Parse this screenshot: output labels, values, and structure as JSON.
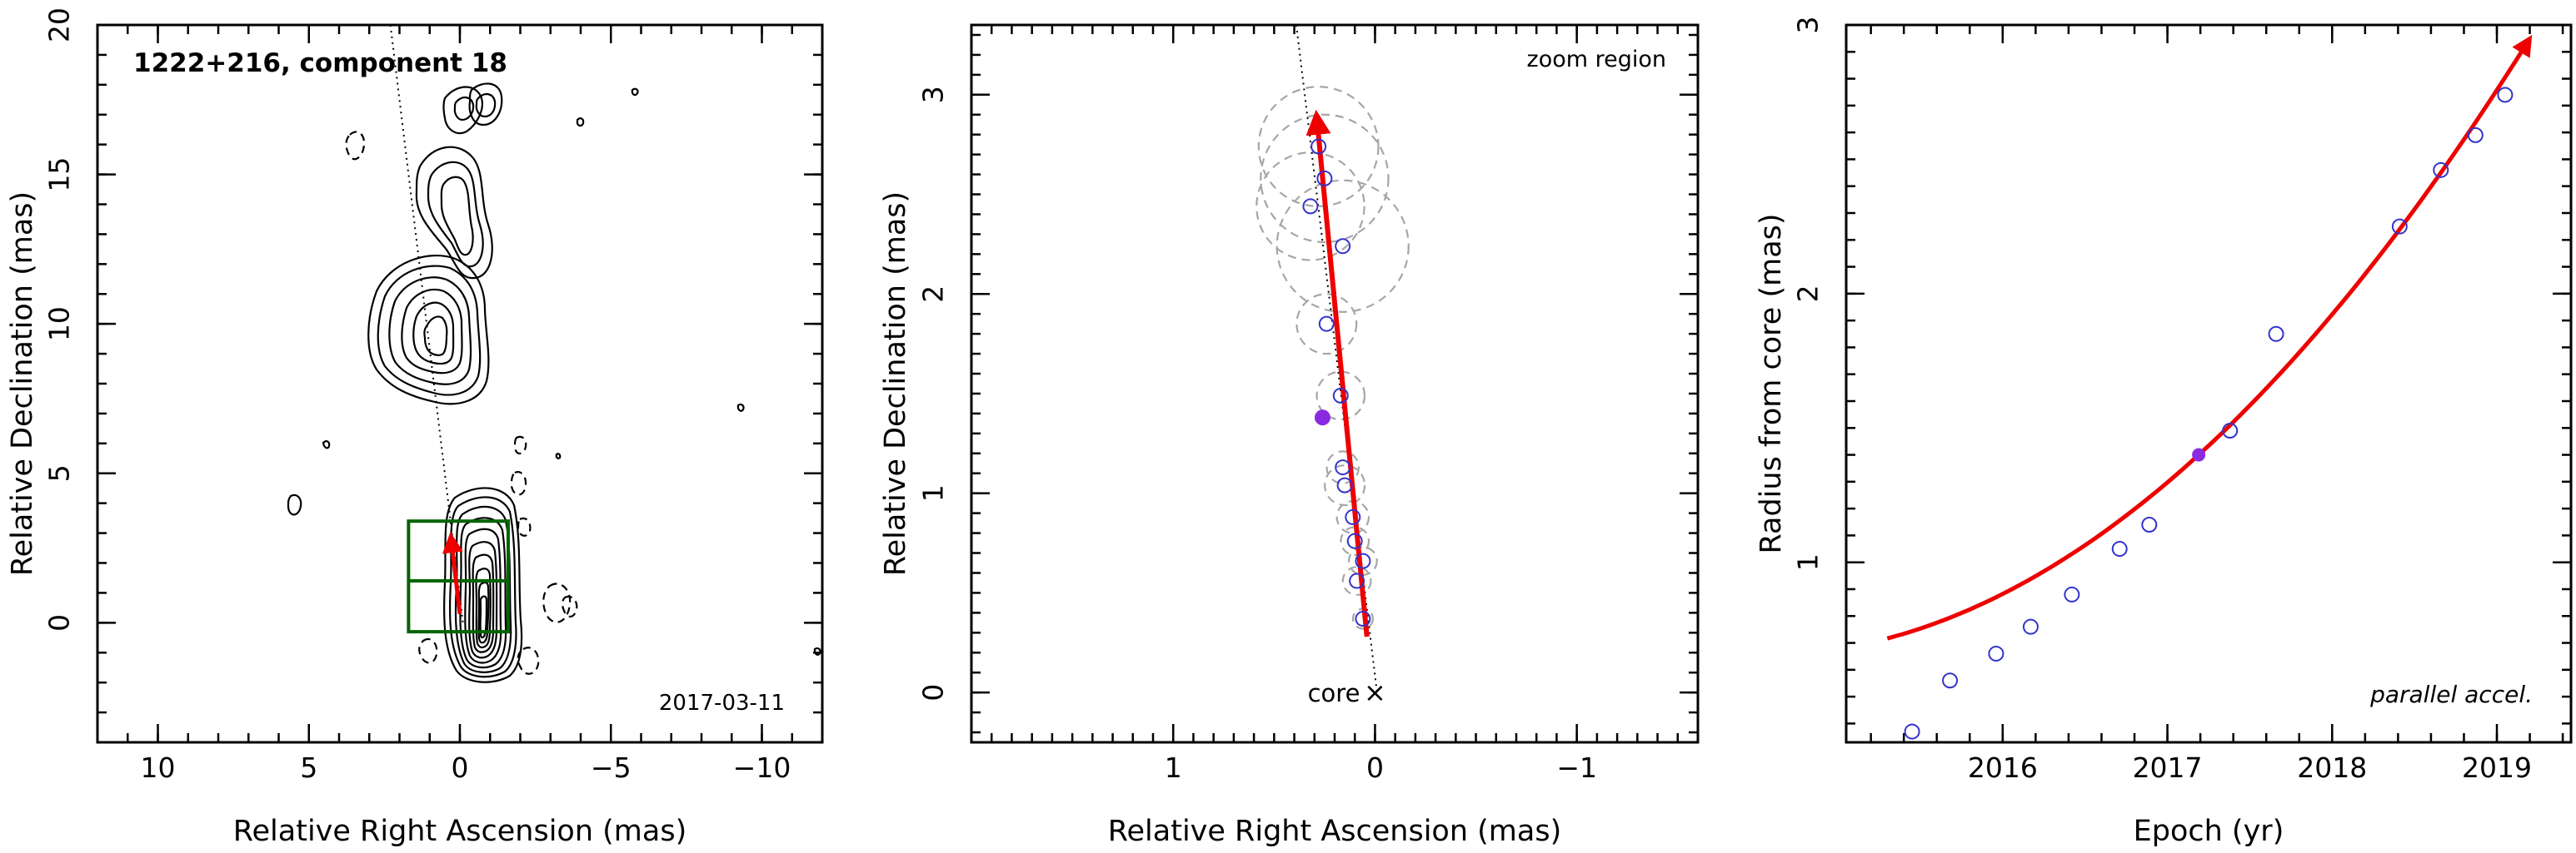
{
  "chart_data": [
    {
      "type": "contour",
      "title": "1222+216, component 18",
      "date_label": "2017-03-11",
      "xlabel": "Relative Right Ascension (mas)",
      "ylabel": "Relative Declination (mas)",
      "xlim": [
        12,
        -12
      ],
      "ylim": [
        -4,
        20
      ],
      "xticks": [
        10,
        5,
        0,
        -5,
        -10
      ],
      "yticks": [
        0,
        5,
        10,
        15,
        20
      ],
      "xtick_labels": [
        "10",
        "5",
        "0",
        "−5",
        "−10"
      ],
      "ytick_labels": [
        "0",
        "5",
        "10",
        "15",
        "20"
      ],
      "dotted_line": [
        [
          2.3,
          20
        ],
        [
          -0.1,
          0
        ]
      ],
      "zoom_box": {
        "x": [
          1.7,
          -1.6
        ],
        "y": [
          -0.3,
          3.4
        ],
        "center_y": 1.4
      },
      "arrow": {
        "from": [
          0.0,
          0.3
        ],
        "to": [
          0.3,
          2.9
        ]
      }
    },
    {
      "type": "scatter",
      "title": "zoom region",
      "xlabel": "Relative Right Ascension (mas)",
      "ylabel": "Relative Declination (mas)",
      "xlim": [
        2.0,
        -1.6
      ],
      "ylim": [
        -0.25,
        3.35
      ],
      "xticks": [
        1,
        0,
        -1
      ],
      "yticks": [
        0,
        1,
        2,
        3
      ],
      "xtick_labels": [
        "1",
        "0",
        "−1"
      ],
      "ytick_labels": [
        "0",
        "1",
        "2",
        "3"
      ],
      "core_label": "core",
      "core_marker": "×",
      "points": [
        {
          "x": 0.06,
          "y": 0.37,
          "r": 0.05
        },
        {
          "x": 0.09,
          "y": 0.56,
          "r": 0.07
        },
        {
          "x": 0.06,
          "y": 0.66,
          "r": 0.07
        },
        {
          "x": 0.1,
          "y": 0.76,
          "r": 0.07
        },
        {
          "x": 0.11,
          "y": 0.88,
          "r": 0.08
        },
        {
          "x": 0.15,
          "y": 1.04,
          "r": 0.1
        },
        {
          "x": 0.16,
          "y": 1.13,
          "r": 0.08
        },
        {
          "x": 0.17,
          "y": 1.49,
          "r": 0.12
        },
        {
          "x": 0.24,
          "y": 1.85,
          "r": 0.15
        },
        {
          "x": 0.16,
          "y": 2.24,
          "r": 0.33
        },
        {
          "x": 0.32,
          "y": 2.44,
          "r": 0.27
        },
        {
          "x": 0.25,
          "y": 2.58,
          "r": 0.32
        },
        {
          "x": 0.28,
          "y": 2.74,
          "r": 0.3
        }
      ],
      "highlight_point": {
        "x": 0.26,
        "y": 1.38
      },
      "dotted_line": [
        [
          0.39,
          3.35
        ],
        [
          -0.01,
          0
        ]
      ],
      "arrow": {
        "from": [
          0.04,
          0.28
        ],
        "to": [
          0.29,
          2.9
        ]
      }
    },
    {
      "type": "scatter",
      "xlabel": "Epoch (yr)",
      "ylabel": "Radius from core (mas)",
      "annotation": "parallel accel.",
      "xlim": [
        2015.05,
        2019.45
      ],
      "ylim": [
        0.33,
        3.0
      ],
      "xticks": [
        2016,
        2017,
        2018,
        2019
      ],
      "yticks": [
        1,
        2,
        3
      ],
      "xtick_labels": [
        "2016",
        "2017",
        "2018",
        "2019"
      ],
      "ytick_labels": [
        "1",
        "2",
        "3"
      ],
      "points": [
        {
          "x": 2015.45,
          "y": 0.37
        },
        {
          "x": 2015.68,
          "y": 0.56
        },
        {
          "x": 2015.96,
          "y": 0.66
        },
        {
          "x": 2016.17,
          "y": 0.76
        },
        {
          "x": 2016.42,
          "y": 0.88
        },
        {
          "x": 2016.71,
          "y": 1.05
        },
        {
          "x": 2016.89,
          "y": 1.14
        },
        {
          "x": 2017.38,
          "y": 1.49
        },
        {
          "x": 2017.66,
          "y": 1.85
        },
        {
          "x": 2018.41,
          "y": 2.25
        },
        {
          "x": 2018.66,
          "y": 2.46
        },
        {
          "x": 2018.87,
          "y": 2.59
        },
        {
          "x": 2019.05,
          "y": 2.74
        }
      ],
      "highlight_point": {
        "x": 2017.19,
        "y": 1.4
      },
      "fit_curve": {
        "model": "quadratic",
        "t0": 2017.19,
        "r0": 1.4,
        "v": 0.56,
        "a": 0.105,
        "x_range": [
          2015.3,
          2019.2
        ]
      }
    }
  ],
  "colors": {
    "contour": "#000000",
    "dotted_line": "#000000",
    "zoom_box": "#006400",
    "arrow": "#ee0000",
    "points": "#3333cc",
    "highlight": "#8a2be2",
    "circles": "#a6a6a6"
  }
}
